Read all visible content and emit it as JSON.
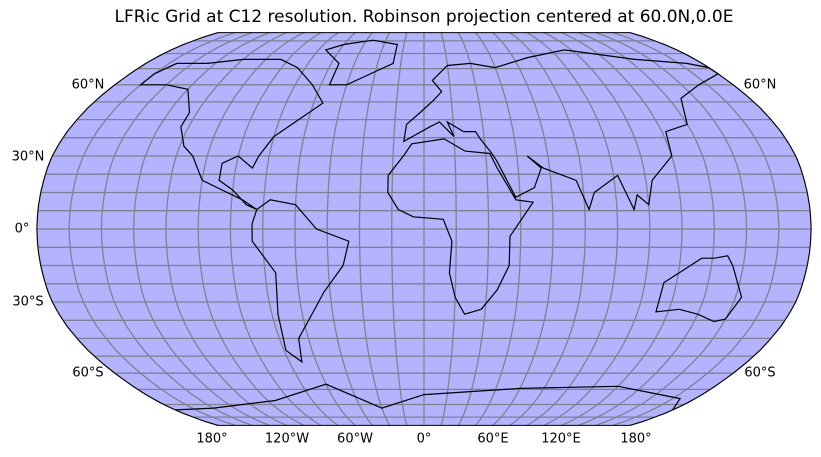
{
  "title": "LFRic Grid at C12 resolution. Robinson projection centered at 60.0N,0.0E",
  "lat_labels_left": [
    "60°N",
    "30°N",
    "0°",
    "30°S",
    "60°S"
  ],
  "lat_labels_right": [
    "60°N",
    "60°S"
  ],
  "lon_labels": [
    "180°",
    "120°W",
    "60°W",
    "0°",
    "60°E",
    "120°E",
    "180°"
  ]
}
